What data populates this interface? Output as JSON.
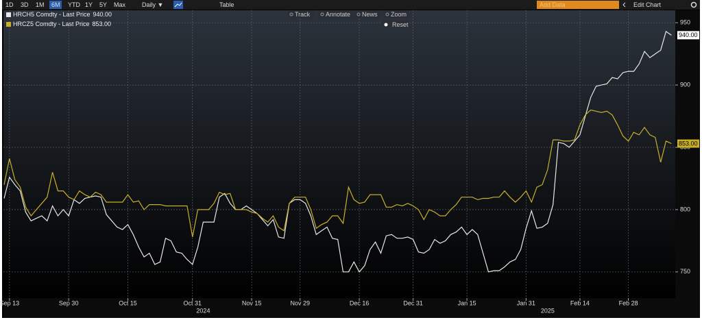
{
  "toolbar": {
    "ranges": [
      "1D",
      "3D",
      "1M",
      "6M",
      "YTD",
      "1Y",
      "5Y",
      "Max"
    ],
    "active_range": "6M",
    "interval": "Daily ▼",
    "table": "Table",
    "add_data": "Add Data",
    "edit_chart": "Edit Chart"
  },
  "chart_tools": [
    "Track",
    "Annotate",
    "News",
    "Zoom"
  ],
  "reset": "Reset",
  "chart_data": {
    "type": "line",
    "grid": true,
    "axis_side": "right",
    "year_labels": [
      "2024",
      "2025"
    ],
    "categories": [
      null,
      "Sep 13",
      null,
      null,
      null,
      null,
      null,
      null,
      null,
      null,
      null,
      null,
      "Sep 30",
      null,
      null,
      null,
      null,
      null,
      null,
      null,
      null,
      null,
      null,
      "Oct 15",
      null,
      null,
      null,
      null,
      null,
      null,
      null,
      null,
      null,
      null,
      null,
      "Oct 31",
      null,
      null,
      null,
      null,
      null,
      null,
      null,
      null,
      null,
      null,
      "Nov 15",
      null,
      null,
      null,
      null,
      null,
      null,
      null,
      null,
      "Nov 29",
      null,
      null,
      null,
      null,
      null,
      null,
      null,
      null,
      null,
      null,
      "Dec 16",
      null,
      null,
      null,
      null,
      null,
      null,
      null,
      null,
      null,
      "Dec 31",
      null,
      null,
      null,
      null,
      null,
      null,
      null,
      null,
      null,
      "Jan 15",
      null,
      null,
      null,
      null,
      null,
      null,
      null,
      null,
      null,
      null,
      "Jan 31",
      null,
      null,
      null,
      null,
      null,
      null,
      null,
      null,
      null,
      "Feb 14",
      null,
      null,
      null,
      null,
      null,
      null,
      null,
      null,
      "Feb 28",
      null,
      null,
      null,
      null,
      null,
      null,
      null,
      null
    ],
    "series": [
      {
        "name": "HRCH5 Comdty - Last Price",
        "last_label": "940.00",
        "color": "#e8e8e8",
        "values": [
          809,
          826,
          820,
          815,
          798,
          791,
          793,
          795,
          791,
          803,
          795,
          800,
          795,
          808,
          805,
          809,
          810,
          811,
          810,
          796,
          791,
          786,
          784,
          788,
          780,
          770,
          762,
          765,
          756,
          758,
          777,
          775,
          766,
          765,
          760,
          756,
          770,
          790,
          790,
          790,
          810,
          813,
          805,
          800,
          800,
          803,
          800,
          797,
          792,
          787,
          792,
          778,
          777,
          805,
          808,
          808,
          805,
          795,
          780,
          783,
          786,
          777,
          776,
          750,
          750,
          758,
          750,
          755,
          768,
          774,
          765,
          779,
          780,
          777,
          777,
          778,
          776,
          766,
          765,
          768,
          776,
          773,
          775,
          780,
          782,
          786,
          780,
          784,
          780,
          765,
          750,
          751,
          751,
          754,
          758,
          760,
          768,
          785,
          799,
          785,
          786,
          789,
          804,
          854,
          853,
          850,
          855,
          860,
          875,
          890,
          899,
          900,
          901,
          906,
          905,
          910,
          911,
          911,
          917,
          927,
          922,
          925,
          928,
          943,
          940
        ]
      },
      {
        "name": "HRCZ5 Comdty - Last Price",
        "last_label": "853.00",
        "color": "#c9b02a",
        "values": [
          820,
          841,
          824,
          818,
          802,
          795,
          800,
          805,
          810,
          830,
          815,
          815,
          810,
          808,
          815,
          812,
          810,
          814,
          812,
          806,
          806,
          806,
          806,
          812,
          806,
          807,
          800,
          804,
          804,
          804,
          803,
          803,
          803,
          803,
          803,
          778,
          800,
          800,
          800,
          805,
          814,
          812,
          813,
          800,
          800,
          800,
          798,
          797,
          793,
          790,
          795,
          786,
          783,
          805,
          810,
          810,
          810,
          800,
          785,
          788,
          790,
          795,
          795,
          789,
          818,
          808,
          805,
          806,
          812,
          812,
          812,
          802,
          802,
          804,
          803,
          805,
          803,
          800,
          792,
          800,
          798,
          795,
          795,
          800,
          804,
          810,
          810,
          810,
          808,
          809,
          809,
          810,
          810,
          815,
          810,
          806,
          810,
          815,
          806,
          818,
          820,
          832,
          856,
          856,
          855,
          855,
          856,
          868,
          876,
          880,
          879,
          878,
          879,
          876,
          868,
          859,
          855,
          862,
          860,
          866,
          860,
          858,
          838,
          855,
          853
        ]
      }
    ],
    "ylim": [
      729,
      960
    ],
    "yticks": [
      750,
      800,
      850,
      900,
      950
    ]
  }
}
